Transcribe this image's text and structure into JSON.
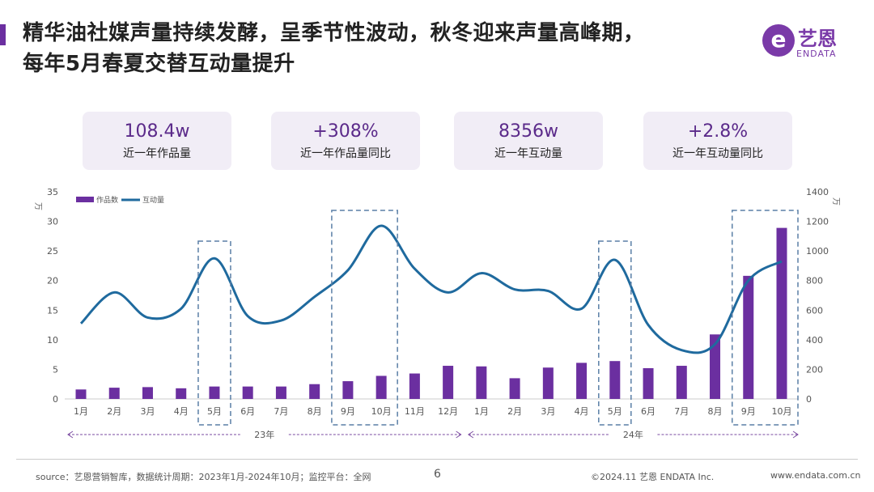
{
  "title": {
    "line1": "精华油社媒声量持续发酵，呈季节性波动，秋冬迎来声量高峰期，",
    "line2": "每年5月春夏交替互动量提升"
  },
  "logo": {
    "cn": "艺恩",
    "en": "ENDATA"
  },
  "kpis": [
    {
      "value": "108.4w",
      "label": "近一年作品量"
    },
    {
      "value": "+308%",
      "label": "近一年作品量同比"
    },
    {
      "value": "8356w",
      "label": "近一年互动量"
    },
    {
      "value": "+2.8%",
      "label": "近一年互动量同比"
    }
  ],
  "chart_data": {
    "type": "bar+line",
    "categories": [
      "1月",
      "2月",
      "3月",
      "4月",
      "5月",
      "6月",
      "7月",
      "8月",
      "9月",
      "10月",
      "11月",
      "12月",
      "1月",
      "2月",
      "3月",
      "4月",
      "5月",
      "6月",
      "7月",
      "8月",
      "9月",
      "10月"
    ],
    "year_groups": [
      {
        "label": "23年",
        "from": 0,
        "to": 11
      },
      {
        "label": "24年",
        "from": 12,
        "to": 21
      }
    ],
    "series": [
      {
        "name": "作品数",
        "type": "bar",
        "axis": "left",
        "color": "#6b2fa0",
        "values": [
          1.6,
          1.9,
          2.0,
          1.8,
          2.1,
          2.1,
          2.1,
          2.5,
          3.0,
          3.9,
          4.3,
          5.6,
          5.5,
          3.5,
          5.3,
          6.1,
          6.4,
          5.2,
          5.6,
          10.9,
          20.8,
          28.9
        ]
      },
      {
        "name": "互动量",
        "type": "line",
        "axis": "right",
        "color": "#1f6a9e",
        "values": [
          510,
          720,
          550,
          610,
          950,
          560,
          530,
          690,
          870,
          1170,
          880,
          720,
          850,
          740,
          730,
          610,
          940,
          500,
          330,
          370,
          800,
          930
        ]
      }
    ],
    "left_axis": {
      "unit": "万",
      "ylim": [
        0,
        35
      ],
      "ticks": [
        0,
        5,
        10,
        15,
        20,
        25,
        30,
        35
      ]
    },
    "right_axis": {
      "unit": "万",
      "ylim": [
        0,
        1400
      ],
      "ticks": [
        0,
        200,
        400,
        600,
        800,
        1000,
        1200,
        1400
      ]
    },
    "highlight_ranges": [
      [
        4,
        4
      ],
      [
        8,
        9
      ],
      [
        16,
        16
      ],
      [
        20,
        21
      ]
    ],
    "legend": "top-left"
  },
  "footer": {
    "source": "source：艺恩营销智库，数据统计周期：2023年1月-2024年10月；监控平台：全网",
    "page": "6",
    "copyright": "©2024.11  艺恩 ENDATA Inc.",
    "url": "www.endata.com.cn"
  }
}
